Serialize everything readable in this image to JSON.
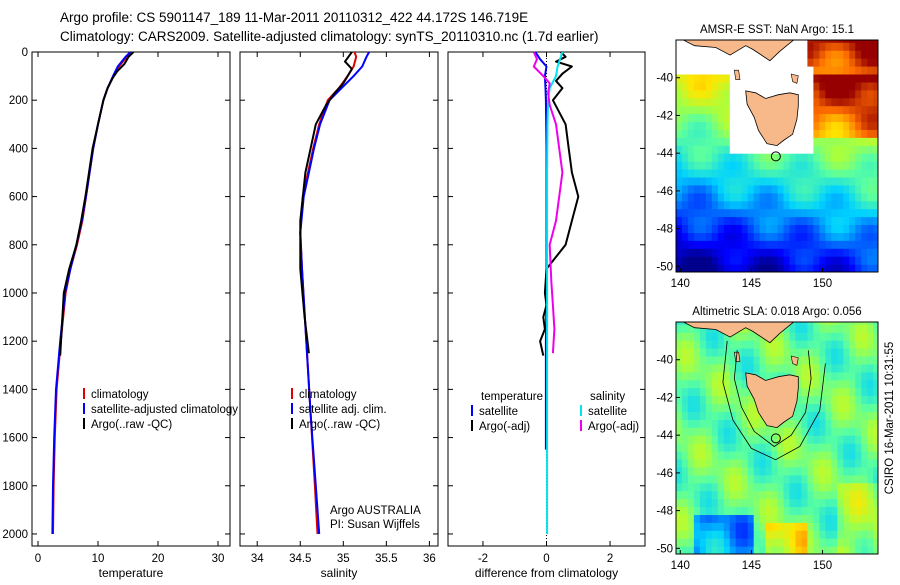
{
  "header": {
    "line1": "Argo profile: CS 5901147_189 11-Mar-2011 20110312_422 44.172S 146.719E",
    "line2": "Climatology: CARS2009. Satellite-adjusted climatology: synTS_20110310.nc (1.7d earlier)"
  },
  "side_label": "CSIRO 16-Mar-2011 10:31:55",
  "chart_data": [
    {
      "id": "temperature",
      "type": "line",
      "xlabel": "temperature",
      "ylabel": "",
      "xlim": [
        -1,
        32
      ],
      "ylim": [
        2050,
        0
      ],
      "x_ticks": [
        0,
        10,
        20,
        30
      ],
      "y_ticks": [
        0,
        200,
        400,
        600,
        800,
        1000,
        1200,
        1400,
        1600,
        1800,
        2000
      ],
      "legend": [
        "climatology",
        "satellite-adjusted climatology",
        "Argo(..raw -QC)"
      ],
      "series": [
        {
          "name": "climatology",
          "color": "#e00000",
          "x": [
            15.8,
            14.8,
            13.5,
            12.6,
            11.6,
            10.9,
            10.0,
            9.2,
            8.6,
            8.0,
            7.4,
            6.5,
            5.4,
            4.6,
            3.8,
            3.1,
            2.8,
            2.6,
            2.5
          ],
          "y": [
            0,
            20,
            60,
            100,
            150,
            200,
            300,
            400,
            500,
            600,
            700,
            800,
            900,
            1000,
            1200,
            1400,
            1600,
            1800,
            2000
          ]
        },
        {
          "name": "satellite-adjusted climatology",
          "color": "#0000ff",
          "x": [
            15.4,
            14.6,
            13.3,
            12.5,
            11.6,
            10.9,
            10.0,
            9.2,
            8.6,
            8.0,
            7.3,
            6.4,
            5.4,
            4.5,
            3.7,
            3.0,
            2.7,
            2.5,
            2.4
          ],
          "y": [
            0,
            20,
            60,
            100,
            150,
            200,
            300,
            400,
            500,
            600,
            700,
            800,
            900,
            1000,
            1200,
            1400,
            1600,
            1800,
            2000
          ]
        },
        {
          "name": "Argo(..raw -QC)",
          "color": "#000000",
          "x": [
            15.9,
            15.1,
            14.4,
            13.2,
            12.4,
            11.6,
            10.9,
            10.0,
            9.1,
            8.5,
            7.9,
            7.2,
            6.4,
            5.2,
            4.3,
            3.7
          ],
          "y": [
            0,
            20,
            50,
            80,
            110,
            150,
            200,
            300,
            400,
            500,
            600,
            700,
            800,
            900,
            1000,
            1260
          ]
        }
      ]
    },
    {
      "id": "salinity",
      "type": "line",
      "xlabel": "salinity",
      "ylabel": "",
      "xlim": [
        33.8,
        36.1
      ],
      "ylim": [
        2050,
        0
      ],
      "x_ticks": [
        34,
        34.5,
        35,
        35.5,
        36
      ],
      "y_ticks": [
        0,
        200,
        400,
        600,
        800,
        1000,
        1200,
        1400,
        1600,
        1800,
        2000
      ],
      "legend": [
        "climatology",
        "satellite adj. clim.",
        "Argo(..raw -QC)"
      ],
      "annotation": [
        "Argo AUSTRALIA",
        "PI: Susan Wijffels"
      ],
      "series": [
        {
          "name": "climatology",
          "color": "#e00000",
          "x": [
            35.13,
            35.15,
            35.12,
            35.05,
            34.95,
            34.82,
            34.72,
            34.65,
            34.59,
            34.53,
            34.5,
            34.52,
            34.57,
            34.62,
            34.67,
            34.7
          ],
          "y": [
            0,
            20,
            60,
            100,
            150,
            200,
            300,
            400,
            500,
            600,
            750,
            900,
            1200,
            1500,
            1800,
            2000
          ]
        },
        {
          "name": "satellite adj. clim.",
          "color": "#0000ff",
          "x": [
            35.3,
            35.27,
            35.22,
            35.12,
            34.98,
            34.84,
            34.73,
            34.66,
            34.6,
            34.54,
            34.5,
            34.52,
            34.57,
            34.62,
            34.68,
            34.72
          ],
          "y": [
            0,
            20,
            60,
            100,
            150,
            200,
            300,
            400,
            500,
            600,
            750,
            900,
            1200,
            1500,
            1800,
            2000
          ]
        },
        {
          "name": "Argo(..raw -QC)",
          "color": "#000000",
          "x": [
            35.1,
            35.02,
            35.1,
            35.05,
            35.0,
            34.9,
            34.8,
            34.68,
            34.62,
            34.56,
            34.5,
            34.5,
            34.55,
            34.6
          ],
          "y": [
            0,
            40,
            70,
            100,
            130,
            170,
            220,
            300,
            400,
            500,
            700,
            900,
            1100,
            1250
          ]
        }
      ]
    },
    {
      "id": "difference",
      "type": "line",
      "xlabel": "difference from climatology",
      "ylabel": "",
      "xlim": [
        -3.1,
        3.1
      ],
      "ylim": [
        2050,
        0
      ],
      "x_ticks": [
        -2,
        0,
        2
      ],
      "y_ticks": [
        0,
        200,
        400,
        600,
        800,
        1000,
        1200,
        1400,
        1600,
        1800,
        2000
      ],
      "legend": [
        "temperature",
        "satellite",
        "Argo(-adj)",
        "salinity",
        "satellite",
        "Argo(-adj)"
      ],
      "series": [
        {
          "name": "temperature satellite",
          "color": "#0000ff",
          "x": [
            -0.35,
            -0.2,
            0.0,
            -0.05,
            -0.03,
            -0.02,
            0.0,
            0.0,
            0.0,
            0.0,
            -0.02,
            -0.02,
            -0.02
          ],
          "y": [
            0,
            30,
            60,
            100,
            150,
            200,
            400,
            600,
            800,
            1000,
            1200,
            1400,
            1650
          ]
        },
        {
          "name": "temperature Argo(-adj)",
          "color": "#000000",
          "x": [
            0.45,
            0.6,
            0.3,
            0.8,
            0.5,
            0.3,
            0.5,
            0.2,
            0.6,
            0.7,
            0.8,
            1.0,
            0.8,
            0.6,
            0.0,
            -0.05,
            0.0,
            -0.1,
            -0.05,
            -0.2,
            -0.1
          ],
          "y": [
            0,
            20,
            40,
            60,
            90,
            120,
            150,
            200,
            300,
            400,
            500,
            600,
            700,
            800,
            900,
            1000,
            1050,
            1100,
            1150,
            1200,
            1260
          ]
        },
        {
          "name": "salinity satellite",
          "color": "#00e5ee",
          "x": [
            0.5,
            0.45,
            0.35,
            0.3,
            0.1,
            0.05,
            0.03,
            0.02,
            0.02,
            0.02,
            0.02,
            0.02,
            0.02,
            0.02
          ],
          "y": [
            0,
            20,
            60,
            100,
            150,
            200,
            300,
            500,
            700,
            1000,
            1300,
            1600,
            1800,
            2000
          ]
        },
        {
          "name": "salinity Argo(-adj)",
          "color": "#ee00ee",
          "x": [
            -0.4,
            -0.3,
            -0.4,
            -0.1,
            0.1,
            0.05,
            0.1,
            0.3,
            0.4,
            0.5,
            0.4,
            0.3,
            0.1,
            0.15,
            0.2,
            0.25,
            0.2
          ],
          "y": [
            0,
            30,
            60,
            100,
            130,
            170,
            220,
            300,
            400,
            500,
            600,
            700,
            800,
            950,
            1050,
            1150,
            1250
          ]
        }
      ]
    }
  ],
  "maps": [
    {
      "id": "sst",
      "title": "AMSR-E SST: NaN Argo: 15.1",
      "x_ticks": [
        140,
        145,
        150
      ],
      "y_ticks": [
        -40,
        -42,
        -44,
        -46,
        -48,
        -50
      ],
      "lonlim": [
        139.7,
        153.9
      ],
      "latlim": [
        -50.3,
        -38.0
      ],
      "argo_pos": [
        146.72,
        -44.17
      ]
    },
    {
      "id": "sla",
      "title": "Altimetric SLA: 0.018 Argo: 0.056",
      "x_ticks": [
        140,
        145,
        150
      ],
      "y_ticks": [
        -40,
        -42,
        -44,
        -46,
        -48,
        -50
      ],
      "lonlim": [
        139.7,
        153.9
      ],
      "latlim": [
        -50.3,
        -38.0
      ],
      "argo_pos": [
        146.72,
        -44.17
      ]
    }
  ]
}
